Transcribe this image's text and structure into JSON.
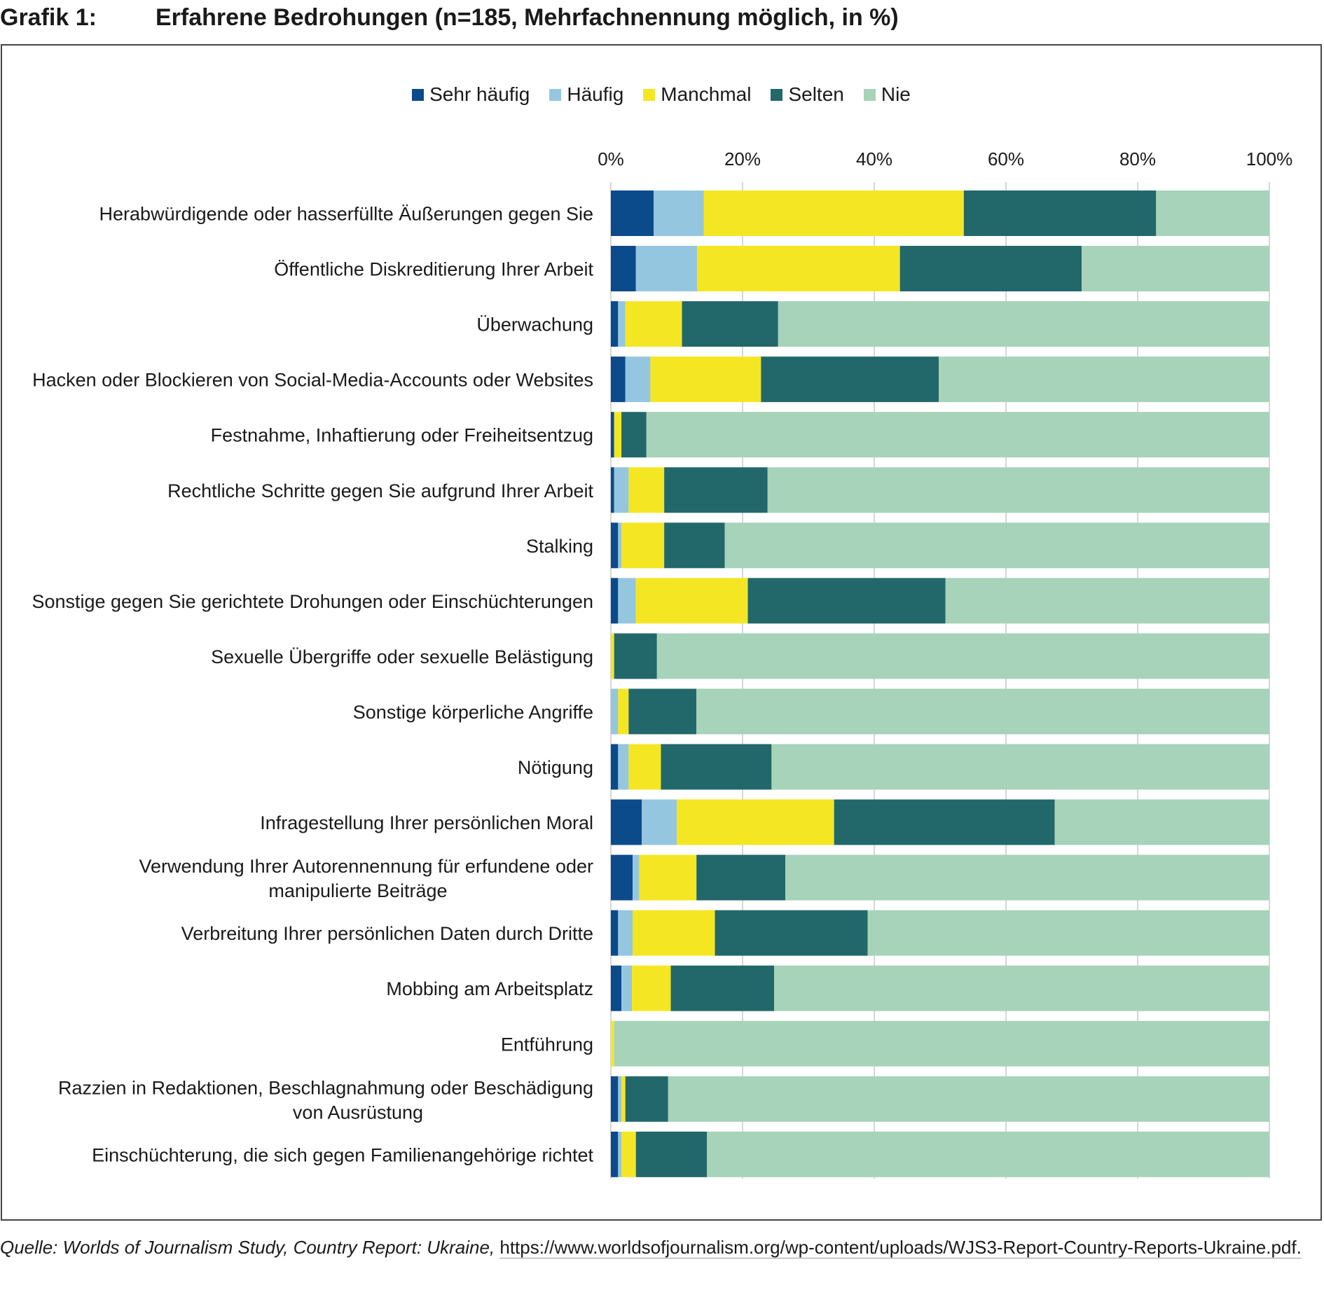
{
  "header": {
    "label": "Grafik 1:",
    "title": "Erfahrene Bedrohungen (n=185, Mehrfachnennung möglich, in %)"
  },
  "source": {
    "text": "Quelle: Worlds of Journalism Study, Country Report: Ukraine,",
    "url": "https://www.worldsofjournalism.org/wp-content/uploads/WJS3-Report-Country-Reports-Ukraine.pdf."
  },
  "chart_data": {
    "type": "bar",
    "orientation": "horizontal",
    "stacked": true,
    "title": "Erfahrene Bedrohungen (n=185, Mehrfachnennung möglich, in %)",
    "xlim": [
      0,
      100
    ],
    "xticks": [
      "0%",
      "20%",
      "40%",
      "60%",
      "80%",
      "100%"
    ],
    "legend_position": "top",
    "categories": [
      [
        "Herabwürdigende oder hasserfüllte Äußerungen gegen Sie"
      ],
      [
        "Öffentliche Diskreditierung Ihrer Arbeit"
      ],
      [
        "Überwachung"
      ],
      [
        "Hacken oder Blockieren von Social-Media-Accounts oder Websites"
      ],
      [
        "Festnahme, Inhaftierung oder Freiheitsentzug"
      ],
      [
        "Rechtliche Schritte gegen Sie aufgrund Ihrer Arbeit"
      ],
      [
        "Stalking"
      ],
      [
        "Sonstige gegen Sie gerichtete Drohungen oder Einschüchterungen"
      ],
      [
        "Sexuelle Übergriffe oder sexuelle Belästigung"
      ],
      [
        "Sonstige körperliche Angriffe"
      ],
      [
        "Nötigung"
      ],
      [
        "Infragestellung Ihrer persönlichen Moral"
      ],
      [
        "Verwendung Ihrer Autorennennung für erfundene oder",
        "manipulierte Beiträge"
      ],
      [
        "Verbreitung Ihrer persönlichen Daten durch Dritte"
      ],
      [
        "Mobbing am Arbeitsplatz"
      ],
      [
        "Entführung"
      ],
      [
        "Razzien in Redaktionen, Beschlagnahmung oder Beschädigung",
        "von Ausrüstung"
      ],
      [
        "Einschüchterung, die sich gegen Familienangehörige richtet"
      ]
    ],
    "series": [
      {
        "name": "Sehr häufig",
        "color": "#0b4a8b",
        "values": [
          6.5,
          3.8,
          1.1,
          2.2,
          0.5,
          0.5,
          1.1,
          1.1,
          0,
          0,
          1.1,
          4.7,
          3.3,
          1.1,
          1.6,
          0,
          1.1,
          1.1
        ]
      },
      {
        "name": "Häufig",
        "color": "#94c6e0",
        "values": [
          7.6,
          9.3,
          1.1,
          3.8,
          0,
          2.2,
          0.5,
          2.7,
          0,
          1.1,
          1.6,
          5.3,
          1.0,
          2.2,
          1.6,
          0,
          0.5,
          0.5
        ]
      },
      {
        "name": "Manchmal",
        "color": "#f5e623",
        "values": [
          39.5,
          30.8,
          8.6,
          16.8,
          1.1,
          5.4,
          6.5,
          17.0,
          0.5,
          1.6,
          4.9,
          23.9,
          8.7,
          12.5,
          5.9,
          0.5,
          0.6,
          2.2
        ]
      },
      {
        "name": "Selten",
        "color": "#22686a",
        "values": [
          29.2,
          27.6,
          14.6,
          27.0,
          3.8,
          15.7,
          9.2,
          30.0,
          6.5,
          10.3,
          16.8,
          33.5,
          13.5,
          23.2,
          15.7,
          0,
          6.5,
          10.8
        ]
      },
      {
        "name": "Nie",
        "color": "#a6d3b9",
        "values": [
          17.2,
          28.5,
          74.6,
          50.2,
          94.6,
          76.2,
          82.7,
          49.2,
          93.0,
          87.0,
          75.6,
          32.6,
          73.5,
          61.0,
          75.2,
          99.5,
          91.3,
          85.4
        ]
      }
    ]
  }
}
